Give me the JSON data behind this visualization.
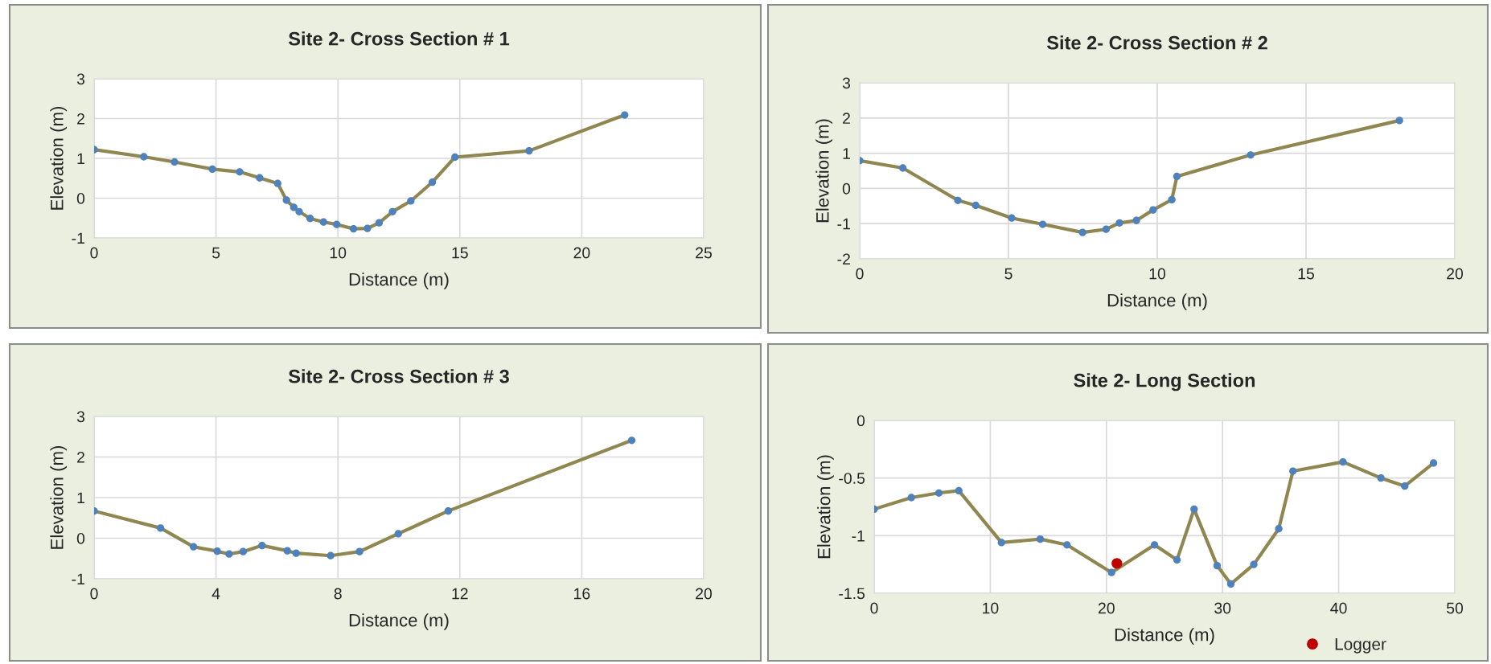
{
  "chart_data": [
    {
      "type": "line",
      "title": "Site 2- Cross Section # 1",
      "xlabel": "Distance (m)",
      "ylabel": "Elevation (m)",
      "xlim": [
        0,
        25
      ],
      "xticks": [
        0,
        5,
        10,
        15,
        20,
        25
      ],
      "ylim": [
        -1,
        3
      ],
      "yticks": [
        -1,
        0,
        1,
        2,
        3
      ],
      "grid": true,
      "marker": "circle",
      "legend": false,
      "series": [
        {
          "color": "#8f8650",
          "colors": [
            "#4f81bd",
            "#4f81bd",
            "#4f81bd",
            "#4f81bd",
            "#4f81bd",
            "#4f81bd",
            "#4f81bd",
            "#4f81bd",
            "#4f81bd",
            "#4f81bd",
            "#4f81bd",
            "#4f81bd",
            "#4f81bd",
            "#4f81bd",
            "#4f81bd",
            "#4f81bd",
            "#4f81bd",
            "#4f81bd",
            "#4f81bd",
            "#4f81bd",
            "#4f81bd",
            "#4f81bd"
          ],
          "x": [
            0,
            2.04,
            3.3,
            4.85,
            5.97,
            6.79,
            7.53,
            7.89,
            8.19,
            8.41,
            8.86,
            9.41,
            9.95,
            10.64,
            11.21,
            11.69,
            12.24,
            12.99,
            13.87,
            14.8,
            17.84,
            21.76
          ],
          "values": [
            1.22,
            1.04,
            0.91,
            0.73,
            0.66,
            0.51,
            0.37,
            -0.05,
            -0.23,
            -0.34,
            -0.51,
            -0.6,
            -0.66,
            -0.77,
            -0.76,
            -0.62,
            -0.34,
            -0.07,
            0.4,
            1.03,
            1.19,
            2.09
          ]
        }
      ]
    },
    {
      "type": "line",
      "title": "Site 2- Cross Section # 2",
      "xlabel": "Distance (m)",
      "ylabel": "Elevation (m)",
      "xlim": [
        0,
        20
      ],
      "xticks": [
        0,
        5,
        10,
        15,
        20
      ],
      "ylim": [
        -2,
        3
      ],
      "yticks": [
        -2,
        -1,
        0,
        1,
        2,
        3
      ],
      "grid": true,
      "marker": "circle",
      "legend": false,
      "series": [
        {
          "color": "#8f8650",
          "colors": [
            "#4f81bd",
            "#4f81bd",
            "#4f81bd",
            "#4f81bd",
            "#4f81bd",
            "#4f81bd",
            "#4f81bd",
            "#4f81bd",
            "#4f81bd",
            "#4f81bd",
            "#4f81bd",
            "#4f81bd",
            "#4f81bd",
            "#4f81bd",
            "#4f81bd"
          ],
          "x": [
            0,
            1.45,
            3.3,
            3.9,
            5.11,
            6.15,
            7.49,
            8.28,
            8.73,
            9.3,
            9.86,
            10.49,
            10.66,
            13.14,
            18.14
          ],
          "values": [
            0.79,
            0.58,
            -0.34,
            -0.48,
            -0.84,
            -1.02,
            -1.25,
            -1.16,
            -0.98,
            -0.91,
            -0.61,
            -0.32,
            0.34,
            0.95,
            1.93
          ]
        }
      ]
    },
    {
      "type": "line",
      "title": "Site 2- Cross Section # 3",
      "xlabel": "Distance (m)",
      "ylabel": "Elevation (m)",
      "xlim": [
        0,
        20
      ],
      "xticks": [
        0,
        4,
        8,
        12,
        16,
        20
      ],
      "ylim": [
        -1,
        3
      ],
      "yticks": [
        -1,
        0,
        1,
        2,
        3
      ],
      "grid": true,
      "marker": "circle",
      "legend": false,
      "series": [
        {
          "color": "#8f8650",
          "colors": [
            "#4f81bd",
            "#4f81bd",
            "#4f81bd",
            "#4f81bd",
            "#4f81bd",
            "#4f81bd",
            "#4f81bd",
            "#4f81bd",
            "#4f81bd",
            "#4f81bd",
            "#4f81bd",
            "#4f81bd",
            "#4f81bd",
            "#4f81bd"
          ],
          "x": [
            0,
            2.18,
            3.26,
            4.04,
            4.43,
            4.89,
            5.51,
            6.34,
            6.63,
            7.76,
            8.71,
            9.98,
            11.62,
            17.64
          ],
          "values": [
            0.67,
            0.25,
            -0.21,
            -0.32,
            -0.39,
            -0.33,
            -0.18,
            -0.31,
            -0.37,
            -0.43,
            -0.33,
            0.11,
            0.67,
            2.41
          ]
        }
      ]
    },
    {
      "type": "line",
      "title": "Site 2- Long Section",
      "xlabel": "Distance (m)",
      "ylabel": "Elevation (m)",
      "xlim": [
        0,
        50
      ],
      "xticks": [
        0,
        10,
        20,
        30,
        40,
        50
      ],
      "ylim": [
        -1.5,
        0
      ],
      "yticks": [
        -1.5,
        -1,
        -0.5,
        0
      ],
      "grid": true,
      "marker": "circle",
      "legend": "bottom",
      "series": [
        {
          "color": "#8f8650",
          "colors": [
            "#4f81bd",
            "#4f81bd",
            "#4f81bd",
            "#4f81bd",
            "#4f81bd",
            "#4f81bd",
            "#4f81bd",
            "#4f81bd",
            "#4f81bd",
            "#4f81bd",
            "#4f81bd",
            "#4f81bd",
            "#4f81bd",
            "#4f81bd",
            "#4f81bd",
            "#4f81bd",
            "#4f81bd",
            "#4f81bd",
            "#4f81bd",
            "#4f81bd",
            "#4f81bd"
          ],
          "x": [
            0,
            3.2,
            5.57,
            7.29,
            10.96,
            14.3,
            16.6,
            20.44,
            20.9,
            24.14,
            26.08,
            27.55,
            29.53,
            30.71,
            32.69,
            34.84,
            36.06,
            40.37,
            43.64,
            45.69,
            48.17
          ],
          "values": [
            -0.77,
            -0.67,
            -0.63,
            -0.61,
            -1.06,
            -1.03,
            -1.08,
            -1.32,
            null,
            -1.08,
            -1.21,
            -0.77,
            -1.26,
            -1.42,
            -1.25,
            -0.94,
            -0.44,
            -0.36,
            -0.5,
            -0.57,
            -0.37
          ]
        },
        {
          "type": "scatter",
          "name": "Logger",
          "color": "#c00000",
          "x": [
            20.9
          ],
          "values": [
            -1.24
          ]
        }
      ]
    }
  ]
}
